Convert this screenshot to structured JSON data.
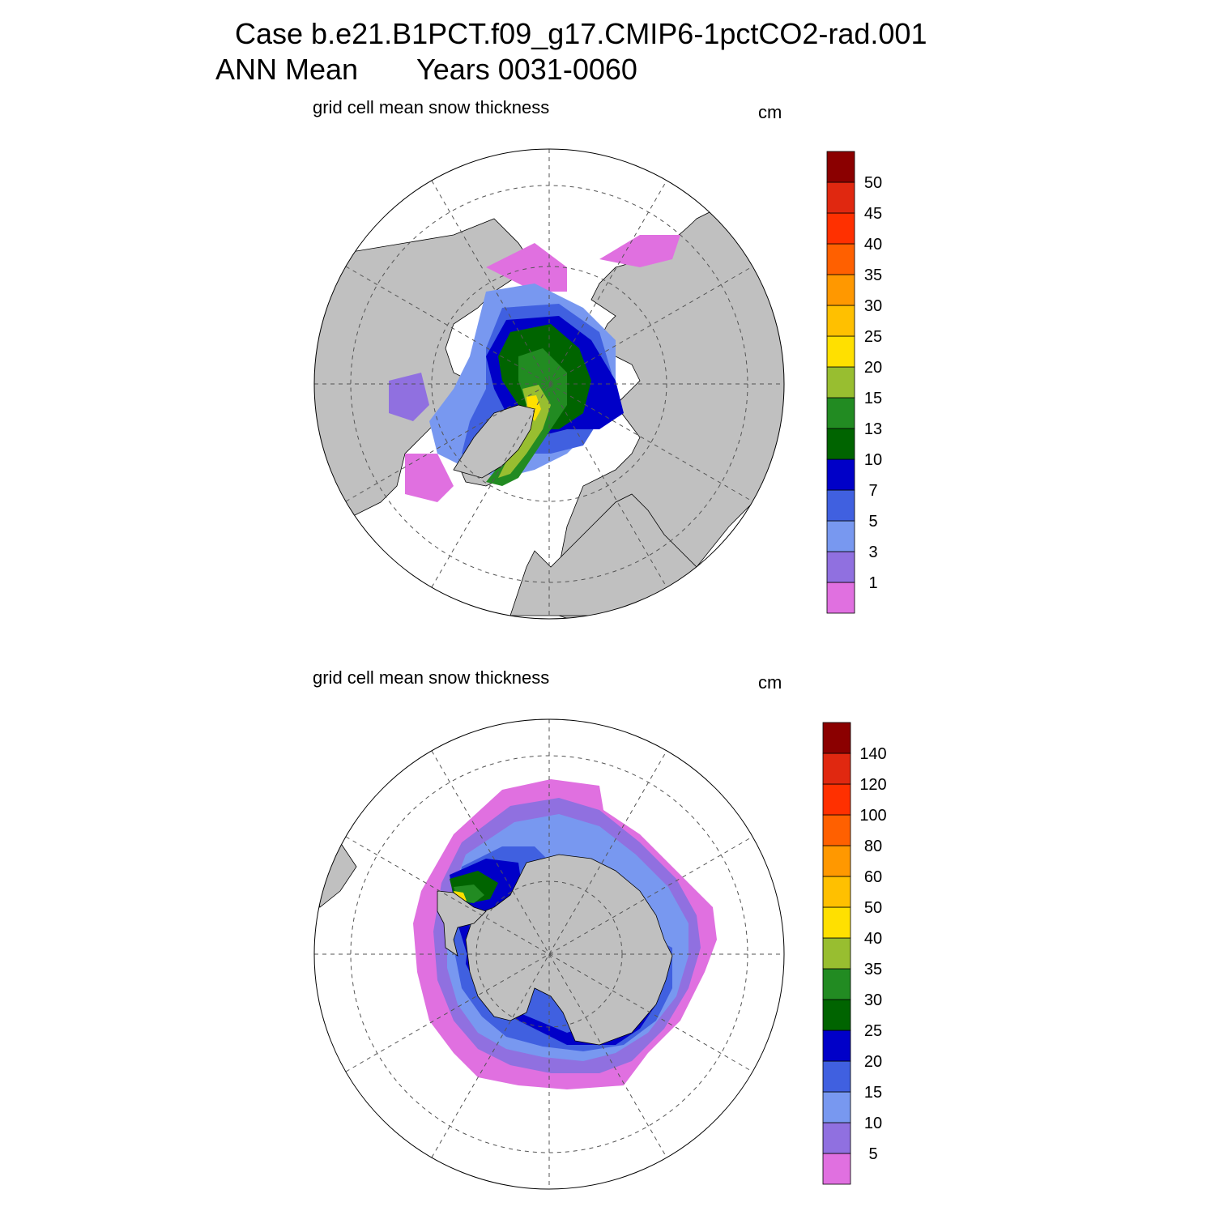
{
  "title": {
    "line1": "Case b.e21.B1PCT.f09_g17.CMIP6-1pctCO2-rad.001",
    "line2_left": "ANN Mean",
    "line2_right": "Years 0031-0060"
  },
  "panels": [
    {
      "hemisphere": "north",
      "subtitle": "grid cell mean snow thickness",
      "unit": "cm",
      "colorbar": {
        "labels": [
          "1",
          "3",
          "5",
          "7",
          "10",
          "13",
          "15",
          "20",
          "25",
          "30",
          "35",
          "40",
          "45",
          "50"
        ],
        "colors": [
          "#e070e0",
          "#9070e0",
          "#7898f0",
          "#4060e0",
          "#0000c8",
          "#006400",
          "#228b22",
          "#98be30",
          "#ffe000",
          "#ffc000",
          "#ff9800",
          "#ff6000",
          "#ff3000",
          "#e02810",
          "#8b0000"
        ]
      }
    },
    {
      "hemisphere": "south",
      "subtitle": "grid cell mean snow thickness",
      "unit": "cm",
      "colorbar": {
        "labels": [
          "5",
          "10",
          "15",
          "20",
          "25",
          "30",
          "35",
          "40",
          "50",
          "60",
          "80",
          "100",
          "120",
          "140"
        ],
        "colors": [
          "#e070e0",
          "#9070e0",
          "#7898f0",
          "#4060e0",
          "#0000c8",
          "#006400",
          "#228b22",
          "#98be30",
          "#ffe000",
          "#ffc000",
          "#ff9800",
          "#ff6000",
          "#ff3000",
          "#e02810",
          "#8b0000"
        ]
      }
    }
  ],
  "colors": {
    "land": "#c0c0c0",
    "ocean": "#ffffff",
    "grid": "#555555"
  }
}
